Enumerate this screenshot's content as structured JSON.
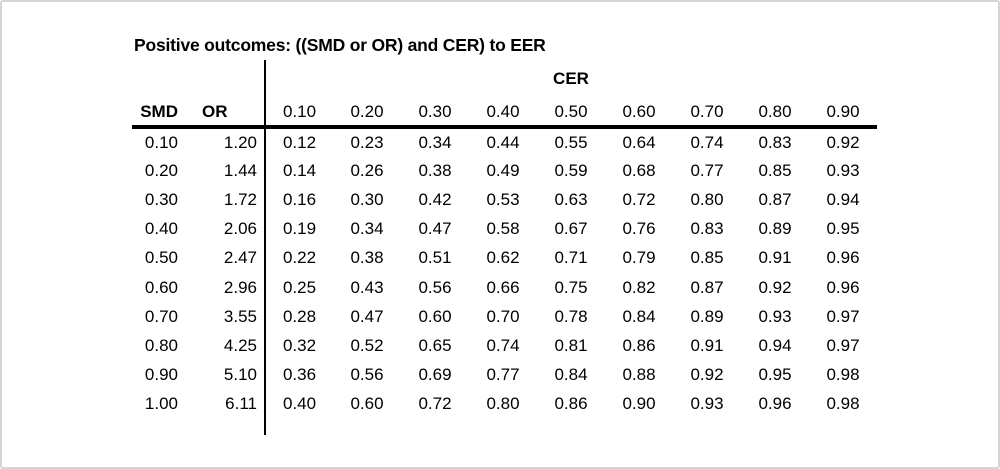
{
  "title": "Positive outcomes: ((SMD or OR) and CER) to EER",
  "table": {
    "group_header": "CER",
    "smd_label": "SMD",
    "or_label": "OR",
    "cer_headers": [
      "0.10",
      "0.20",
      "0.30",
      "0.40",
      "0.50",
      "0.60",
      "0.70",
      "0.80",
      "0.90"
    ],
    "rows": [
      [
        "0.10",
        "1.20",
        "0.12",
        "0.23",
        "0.34",
        "0.44",
        "0.55",
        "0.64",
        "0.74",
        "0.83",
        "0.92"
      ],
      [
        "0.20",
        "1.44",
        "0.14",
        "0.26",
        "0.38",
        "0.49",
        "0.59",
        "0.68",
        "0.77",
        "0.85",
        "0.93"
      ],
      [
        "0.30",
        "1.72",
        "0.16",
        "0.30",
        "0.42",
        "0.53",
        "0.63",
        "0.72",
        "0.80",
        "0.87",
        "0.94"
      ],
      [
        "0.40",
        "2.06",
        "0.19",
        "0.34",
        "0.47",
        "0.58",
        "0.67",
        "0.76",
        "0.83",
        "0.89",
        "0.95"
      ],
      [
        "0.50",
        "2.47",
        "0.22",
        "0.38",
        "0.51",
        "0.62",
        "0.71",
        "0.79",
        "0.85",
        "0.91",
        "0.96"
      ],
      [
        "0.60",
        "2.96",
        "0.25",
        "0.43",
        "0.56",
        "0.66",
        "0.75",
        "0.82",
        "0.87",
        "0.92",
        "0.96"
      ],
      [
        "0.70",
        "3.55",
        "0.28",
        "0.47",
        "0.60",
        "0.70",
        "0.78",
        "0.84",
        "0.89",
        "0.93",
        "0.97"
      ],
      [
        "0.80",
        "4.25",
        "0.32",
        "0.52",
        "0.65",
        "0.74",
        "0.81",
        "0.86",
        "0.91",
        "0.94",
        "0.97"
      ],
      [
        "0.90",
        "5.10",
        "0.36",
        "0.56",
        "0.69",
        "0.77",
        "0.84",
        "0.88",
        "0.92",
        "0.95",
        "0.98"
      ],
      [
        "1.00",
        "6.11",
        "0.40",
        "0.60",
        "0.72",
        "0.80",
        "0.86",
        "0.90",
        "0.93",
        "0.96",
        "0.98"
      ]
    ]
  },
  "colors": {
    "text": "#000000",
    "background": "#ffffff",
    "card_border": "#d4d4d4",
    "rule": "#000000"
  },
  "chart_data": {
    "type": "table",
    "title": "Positive outcomes: ((SMD or OR) and CER) to EER",
    "row_header_columns": [
      "SMD",
      "OR"
    ],
    "column_group_label": "CER",
    "cer_columns": [
      0.1,
      0.2,
      0.3,
      0.4,
      0.5,
      0.6,
      0.7,
      0.8,
      0.9
    ],
    "smd_values": [
      0.1,
      0.2,
      0.3,
      0.4,
      0.5,
      0.6,
      0.7,
      0.8,
      0.9,
      1.0
    ],
    "or_values": [
      1.2,
      1.44,
      1.72,
      2.06,
      2.47,
      2.96,
      3.55,
      4.25,
      5.1,
      6.11
    ],
    "eer_matrix": [
      [
        0.12,
        0.23,
        0.34,
        0.44,
        0.55,
        0.64,
        0.74,
        0.83,
        0.92
      ],
      [
        0.14,
        0.26,
        0.38,
        0.49,
        0.59,
        0.68,
        0.77,
        0.85,
        0.93
      ],
      [
        0.16,
        0.3,
        0.42,
        0.53,
        0.63,
        0.72,
        0.8,
        0.87,
        0.94
      ],
      [
        0.19,
        0.34,
        0.47,
        0.58,
        0.67,
        0.76,
        0.83,
        0.89,
        0.95
      ],
      [
        0.22,
        0.38,
        0.51,
        0.62,
        0.71,
        0.79,
        0.85,
        0.91,
        0.96
      ],
      [
        0.25,
        0.43,
        0.56,
        0.66,
        0.75,
        0.82,
        0.87,
        0.92,
        0.96
      ],
      [
        0.28,
        0.47,
        0.6,
        0.7,
        0.78,
        0.84,
        0.89,
        0.93,
        0.97
      ],
      [
        0.32,
        0.52,
        0.65,
        0.74,
        0.81,
        0.86,
        0.91,
        0.94,
        0.97
      ],
      [
        0.36,
        0.56,
        0.69,
        0.77,
        0.84,
        0.88,
        0.92,
        0.95,
        0.98
      ],
      [
        0.4,
        0.6,
        0.72,
        0.8,
        0.86,
        0.9,
        0.93,
        0.96,
        0.98
      ]
    ]
  }
}
